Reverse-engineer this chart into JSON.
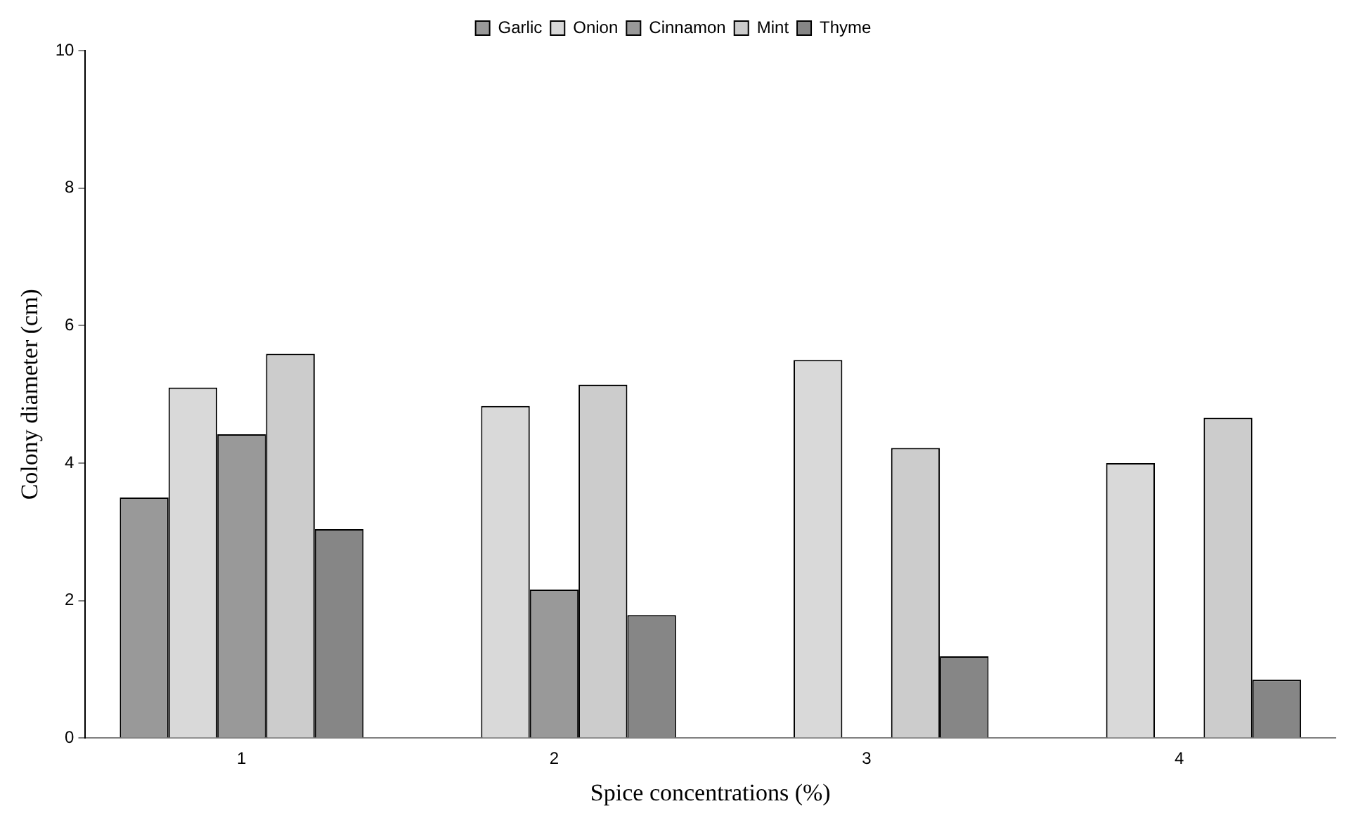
{
  "chart_data": {
    "type": "bar",
    "xlabel": "Spice concentrations (%)",
    "ylabel": "Colony diameter (cm)",
    "categories": [
      "1",
      "2",
      "3",
      "4"
    ],
    "series": [
      {
        "name": "Garlic",
        "color": "#999999",
        "values": [
          3.5,
          null,
          null,
          null
        ]
      },
      {
        "name": "Onion",
        "color": "#d9d9d9",
        "values": [
          5.1,
          4.83,
          5.5,
          4.0
        ]
      },
      {
        "name": "Cinnamon",
        "color": "#999999",
        "values": [
          4.42,
          2.16,
          null,
          null
        ]
      },
      {
        "name": "Mint",
        "color": "#cccccc",
        "values": [
          5.59,
          5.14,
          4.22,
          4.66
        ]
      },
      {
        "name": "Thyme",
        "color": "#868686",
        "values": [
          3.04,
          1.79,
          1.19,
          0.85
        ]
      }
    ],
    "ylim": [
      0,
      10
    ],
    "yticks": [
      0,
      2,
      4,
      6,
      8,
      10
    ],
    "grid": false,
    "legend": "top"
  }
}
